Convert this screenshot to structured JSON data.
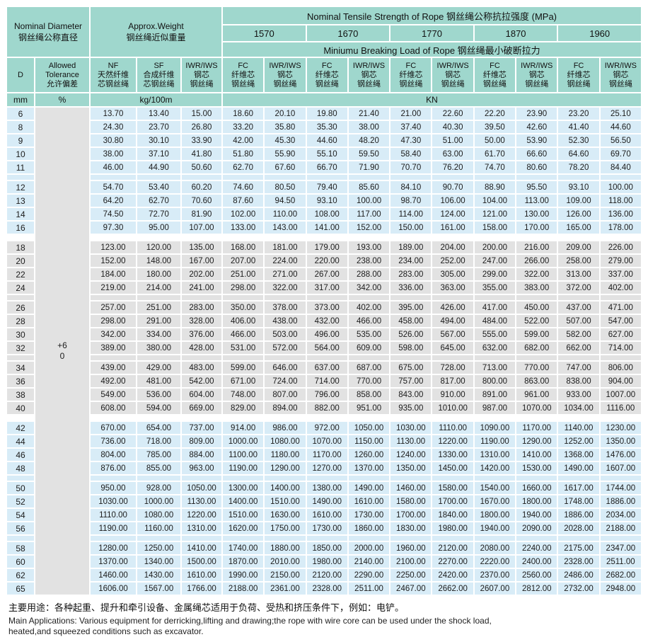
{
  "colors": {
    "teal": "#9fd7cd",
    "blue": "#d8ecf7",
    "gray": "#e2e2e2"
  },
  "header": {
    "nominal_diameter_en": "Nominal Diameter",
    "nominal_diameter_zh": "钢丝绳公称直径",
    "approx_weight_en": "Approx.Weight",
    "approx_weight_zh": "钢丝绳近似重量",
    "tensile_title": "Nominal Tensile Strength of Rope 钢丝绳公称抗拉强度 (MPa)",
    "strengths": [
      "1570",
      "1670",
      "1770",
      "1870",
      "1960"
    ],
    "breaking_title": "Miniumu Breaking Load of Rope 钢丝绳最小破断拉力",
    "d_label": "D",
    "tolerance_lines": [
      "Allowed",
      "Tolerance",
      "允许偏差"
    ],
    "nf_lines": [
      "NF",
      "天然纤维",
      "芯钢丝绳"
    ],
    "sf_lines": [
      "SF",
      "合成纤维",
      "芯钢丝绳"
    ],
    "iwr_lines": [
      "IWR/IWS",
      "钢芯",
      "钢丝绳"
    ],
    "fc_lines": [
      "FC",
      "纤维芯",
      "钢丝绳"
    ],
    "iwr_core_lines": [
      "IWR/IWS",
      "钢芯",
      "钢丝绳"
    ],
    "units": {
      "d": "mm",
      "tolerance": "%",
      "weight": "kg/100m",
      "load": "KN"
    }
  },
  "tolerance_value": {
    "plus": "+6",
    "zero": "0"
  },
  "groups": [
    {
      "band": "blue",
      "rows": [
        {
          "d": "6",
          "v": [
            "13.70",
            "13.40",
            "15.00",
            "18.60",
            "20.10",
            "19.80",
            "21.40",
            "21.00",
            "22.60",
            "22.20",
            "23.90",
            "23.20",
            "25.10"
          ]
        },
        {
          "d": "8",
          "v": [
            "24.30",
            "23.70",
            "26.80",
            "33.20",
            "35.80",
            "35.30",
            "38.00",
            "37.40",
            "40.30",
            "39.50",
            "42.60",
            "41.40",
            "44.60"
          ]
        },
        {
          "d": "9",
          "v": [
            "30.80",
            "30.10",
            "33.90",
            "42.00",
            "45.30",
            "44.60",
            "48.20",
            "47.30",
            "51.00",
            "50.00",
            "53.90",
            "52.30",
            "56.50"
          ]
        },
        {
          "d": "10",
          "v": [
            "38.00",
            "37.10",
            "41.80",
            "51.80",
            "55.90",
            "55.10",
            "59.50",
            "58.40",
            "63.00",
            "61.70",
            "66.60",
            "64.60",
            "69.70"
          ]
        },
        {
          "d": "11",
          "v": [
            "46.00",
            "44.90",
            "50.60",
            "62.70",
            "67.60",
            "66.70",
            "71.90",
            "70.70",
            "76.20",
            "74.70",
            "80.60",
            "78.20",
            "84.40"
          ]
        }
      ]
    },
    {
      "band": "blue",
      "rows": [
        {
          "d": "12",
          "v": [
            "54.70",
            "53.40",
            "60.20",
            "74.60",
            "80.50",
            "79.40",
            "85.60",
            "84.10",
            "90.70",
            "88.90",
            "95.50",
            "93.10",
            "100.00"
          ]
        },
        {
          "d": "13",
          "v": [
            "64.20",
            "62.70",
            "70.60",
            "87.60",
            "94.50",
            "93.10",
            "100.00",
            "98.70",
            "106.00",
            "104.00",
            "113.00",
            "109.00",
            "118.00"
          ]
        },
        {
          "d": "14",
          "v": [
            "74.50",
            "72.70",
            "81.90",
            "102.00",
            "110.00",
            "108.00",
            "117.00",
            "114.00",
            "124.00",
            "121.00",
            "130.00",
            "126.00",
            "136.00"
          ]
        },
        {
          "d": "16",
          "v": [
            "97.30",
            "95.00",
            "107.00",
            "133.00",
            "143.00",
            "141.00",
            "152.00",
            "150.00",
            "161.00",
            "158.00",
            "170.00",
            "165.00",
            "178.00"
          ]
        }
      ]
    },
    {
      "band": "gray",
      "rows": [
        {
          "d": "18",
          "v": [
            "123.00",
            "120.00",
            "135.00",
            "168.00",
            "181.00",
            "179.00",
            "193.00",
            "189.00",
            "204.00",
            "200.00",
            "216.00",
            "209.00",
            "226.00"
          ]
        },
        {
          "d": "20",
          "v": [
            "152.00",
            "148.00",
            "167.00",
            "207.00",
            "224.00",
            "220.00",
            "238.00",
            "234.00",
            "252.00",
            "247.00",
            "266.00",
            "258.00",
            "279.00"
          ]
        },
        {
          "d": "22",
          "v": [
            "184.00",
            "180.00",
            "202.00",
            "251.00",
            "271.00",
            "267.00",
            "288.00",
            "283.00",
            "305.00",
            "299.00",
            "322.00",
            "313.00",
            "337.00"
          ]
        },
        {
          "d": "24",
          "v": [
            "219.00",
            "214.00",
            "241.00",
            "298.00",
            "322.00",
            "317.00",
            "342.00",
            "336.00",
            "363.00",
            "355.00",
            "383.00",
            "372.00",
            "402.00"
          ]
        }
      ]
    },
    {
      "band": "gray",
      "rows": [
        {
          "d": "26",
          "v": [
            "257.00",
            "251.00",
            "283.00",
            "350.00",
            "378.00",
            "373.00",
            "402.00",
            "395.00",
            "426.00",
            "417.00",
            "450.00",
            "437.00",
            "471.00"
          ]
        },
        {
          "d": "28",
          "v": [
            "298.00",
            "291.00",
            "328.00",
            "406.00",
            "438.00",
            "432.00",
            "466.00",
            "458.00",
            "494.00",
            "484.00",
            "522.00",
            "507.00",
            "547.00"
          ]
        },
        {
          "d": "30",
          "v": [
            "342.00",
            "334.00",
            "376.00",
            "466.00",
            "503.00",
            "496.00",
            "535.00",
            "526.00",
            "567.00",
            "555.00",
            "599.00",
            "582.00",
            "627.00"
          ]
        },
        {
          "d": "32",
          "v": [
            "389.00",
            "380.00",
            "428.00",
            "531.00",
            "572.00",
            "564.00",
            "609.00",
            "598.00",
            "645.00",
            "632.00",
            "682.00",
            "662.00",
            "714.00"
          ]
        }
      ]
    },
    {
      "band": "gray",
      "rows": [
        {
          "d": "34",
          "v": [
            "439.00",
            "429.00",
            "483.00",
            "599.00",
            "646.00",
            "637.00",
            "687.00",
            "675.00",
            "728.00",
            "713.00",
            "770.00",
            "747.00",
            "806.00"
          ]
        },
        {
          "d": "36",
          "v": [
            "492.00",
            "481.00",
            "542.00",
            "671.00",
            "724.00",
            "714.00",
            "770.00",
            "757.00",
            "817.00",
            "800.00",
            "863.00",
            "838.00",
            "904.00"
          ]
        },
        {
          "d": "38",
          "v": [
            "549.00",
            "536.00",
            "604.00",
            "748.00",
            "807.00",
            "796.00",
            "858.00",
            "843.00",
            "910.00",
            "891.00",
            "961.00",
            "933.00",
            "1007.00"
          ]
        },
        {
          "d": "40",
          "v": [
            "608.00",
            "594.00",
            "669.00",
            "829.00",
            "894.00",
            "882.00",
            "951.00",
            "935.00",
            "1010.00",
            "987.00",
            "1070.00",
            "1034.00",
            "1116.00"
          ]
        }
      ]
    },
    {
      "band": "blue",
      "rows": [
        {
          "d": "42",
          "v": [
            "670.00",
            "654.00",
            "737.00",
            "914.00",
            "986.00",
            "972.00",
            "1050.00",
            "1030.00",
            "1110.00",
            "1090.00",
            "1170.00",
            "1140.00",
            "1230.00"
          ]
        },
        {
          "d": "44",
          "v": [
            "736.00",
            "718.00",
            "809.00",
            "1000.00",
            "1080.00",
            "1070.00",
            "1150.00",
            "1130.00",
            "1220.00",
            "1190.00",
            "1290.00",
            "1252.00",
            "1350.00"
          ]
        },
        {
          "d": "46",
          "v": [
            "804.00",
            "785.00",
            "884.00",
            "1100.00",
            "1180.00",
            "1170.00",
            "1260.00",
            "1240.00",
            "1330.00",
            "1310.00",
            "1410.00",
            "1368.00",
            "1476.00"
          ]
        },
        {
          "d": "48",
          "v": [
            "876.00",
            "855.00",
            "963.00",
            "1190.00",
            "1290.00",
            "1270.00",
            "1370.00",
            "1350.00",
            "1450.00",
            "1420.00",
            "1530.00",
            "1490.00",
            "1607.00"
          ]
        }
      ]
    },
    {
      "band": "blue",
      "rows": [
        {
          "d": "50",
          "v": [
            "950.00",
            "928.00",
            "1050.00",
            "1300.00",
            "1400.00",
            "1380.00",
            "1490.00",
            "1460.00",
            "1580.00",
            "1540.00",
            "1660.00",
            "1617.00",
            "1744.00"
          ]
        },
        {
          "d": "52",
          "v": [
            "1030.00",
            "1000.00",
            "1130.00",
            "1400.00",
            "1510.00",
            "1490.00",
            "1610.00",
            "1580.00",
            "1700.00",
            "1670.00",
            "1800.00",
            "1748.00",
            "1886.00"
          ]
        },
        {
          "d": "54",
          "v": [
            "1110.00",
            "1080.00",
            "1220.00",
            "1510.00",
            "1630.00",
            "1610.00",
            "1730.00",
            "1700.00",
            "1840.00",
            "1800.00",
            "1940.00",
            "1886.00",
            "2034.00"
          ]
        },
        {
          "d": "56",
          "v": [
            "1190.00",
            "1160.00",
            "1310.00",
            "1620.00",
            "1750.00",
            "1730.00",
            "1860.00",
            "1830.00",
            "1980.00",
            "1940.00",
            "2090.00",
            "2028.00",
            "2188.00"
          ]
        }
      ]
    },
    {
      "band": "blue",
      "rows": [
        {
          "d": "58",
          "v": [
            "1280.00",
            "1250.00",
            "1410.00",
            "1740.00",
            "1880.00",
            "1850.00",
            "2000.00",
            "1960.00",
            "2120.00",
            "2080.00",
            "2240.00",
            "2175.00",
            "2347.00"
          ]
        },
        {
          "d": "60",
          "v": [
            "1370.00",
            "1340.00",
            "1500.00",
            "1870.00",
            "2010.00",
            "1980.00",
            "2140.00",
            "2100.00",
            "2270.00",
            "2220.00",
            "2400.00",
            "2328.00",
            "2511.00"
          ]
        },
        {
          "d": "62",
          "v": [
            "1460.00",
            "1430.00",
            "1610.00",
            "1990.00",
            "2150.00",
            "2120.00",
            "2290.00",
            "2250.00",
            "2420.00",
            "2370.00",
            "2560.00",
            "2486.00",
            "2682.00"
          ]
        },
        {
          "d": "65",
          "v": [
            "1606.00",
            "1567.00",
            "1766.00",
            "2188.00",
            "2361.00",
            "2328.00",
            "2511.00",
            "2467.00",
            "2662.00",
            "2607.00",
            "2812.00",
            "2732.00",
            "2948.00"
          ]
        }
      ]
    }
  ],
  "footer": {
    "zh": "主要用途：各种起重、提升和牵引设备、金属绳芯适用于负荷、受热和挤压条件下，例如：电铲。",
    "en1": "Main Applications: Various equipment for derricking,lifting and drawing;the rope with wire core can be used under the shock load,",
    "en2": "heated,and squeezed conditions such as excavator."
  }
}
